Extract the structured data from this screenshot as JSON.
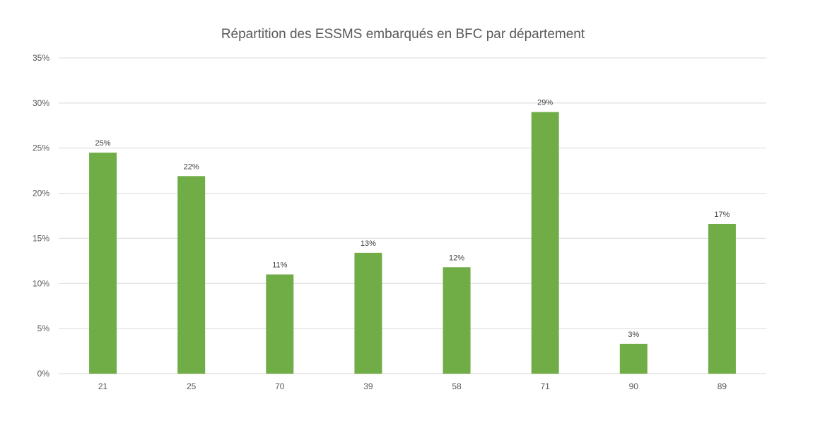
{
  "chart_data": {
    "type": "bar",
    "title": "Répartition des ESSMS embarqués en BFC par département",
    "xlabel": "",
    "ylabel": "",
    "categories": [
      "21",
      "25",
      "70",
      "39",
      "58",
      "71",
      "90",
      "89"
    ],
    "values": [
      24.5,
      21.9,
      11.0,
      13.4,
      11.8,
      29.0,
      3.3,
      16.6
    ],
    "data_labels": [
      "25%",
      "22%",
      "11%",
      "13%",
      "12%",
      "29%",
      "3%",
      "17%"
    ],
    "y_ticks": [
      "0%",
      "5%",
      "10%",
      "15%",
      "20%",
      "25%",
      "30%",
      "35%"
    ],
    "ylim": [
      0,
      35
    ],
    "y_unit": "%",
    "grid": true,
    "legend": "none",
    "bar_color": "#70AD47",
    "grid_color": "#D9D9D9"
  }
}
